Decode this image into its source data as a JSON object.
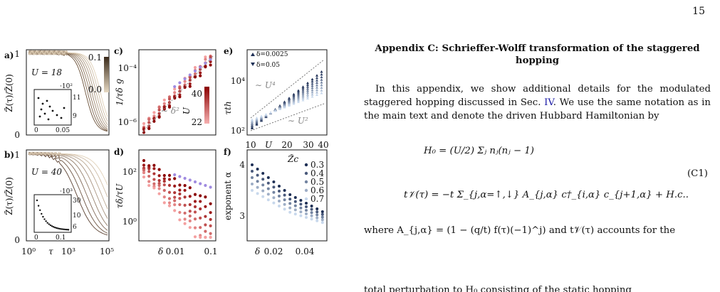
{
  "page_number": "15",
  "figure": {
    "panels": {
      "a": {
        "label": "a)",
        "param": "U = 18",
        "cbar_label": "δ",
        "cbar_ticks": [
          "0.1",
          "0.0"
        ],
        "ylabel": "Z̃(τ)/Z̃(0)",
        "yticks": [
          "1",
          "0"
        ],
        "inset_xticks": [
          "0",
          "0.05"
        ],
        "inset_yticks": [
          "·10²",
          "11",
          "9"
        ],
        "inset_ylabel": "τth"
      },
      "b": {
        "label": "b)",
        "param": "U = 40",
        "ylabel": "Z̃(τ)/Z̃(0)",
        "yticks": [
          "1",
          "0"
        ],
        "xticks": [
          "10⁰",
          "10³",
          "10⁵"
        ],
        "xlabel": "τ",
        "inset_xticks": [
          "0",
          "0.1"
        ],
        "inset_yticks": [
          "·10³",
          "30",
          "10",
          "6"
        ],
        "inset_ylabel": "τth"
      },
      "c": {
        "label": "c)",
        "ylabel": "1/τδ",
        "yticks": [
          "10⁻⁴",
          "10⁻⁶"
        ],
        "annotation": "∼ δ²",
        "cbar_label": "U",
        "cbar_ticks": [
          "40",
          "22"
        ]
      },
      "d": {
        "label": "d)",
        "ylabel": "τδ/τU",
        "yticks": [
          "10²",
          "10⁰"
        ],
        "xlabel": "δ",
        "xticks": [
          "0.01",
          "0.1"
        ]
      },
      "e": {
        "label": "e)",
        "ylabel": "τth",
        "yticks": [
          "10⁴",
          "10²"
        ],
        "xlabel": "U",
        "xticks": [
          "10",
          "20",
          "30",
          "40"
        ],
        "legend": [
          "δ=0.0025",
          "δ=0.05"
        ],
        "annotations": [
          "∼ U⁴",
          "∼ U²"
        ]
      },
      "f": {
        "label": "f)",
        "ylabel": "exponent α",
        "yticks": [
          "4",
          "3"
        ],
        "xlabel": "δ",
        "xticks": [
          "0.02",
          "0.04"
        ],
        "legend_title": "Z̃c",
        "legend": [
          "0.3",
          "0.4",
          "0.5",
          "0.6",
          "0.7"
        ]
      }
    }
  },
  "colors": {
    "text": "#111111",
    "link": "#1a1aa6",
    "brown_dark": "#3a2a1a",
    "brown_light": "#d8c8b0",
    "red_dark": "#8b0000",
    "red_light": "#f3a0a0",
    "purple": "#9a7ee0",
    "blue_dark": "#1e2f55",
    "blue_light": "#b8cce4"
  },
  "section": {
    "title": "Appendix C: Schrieffer-Wolff transformation of the staggered hopping",
    "para1_before": "In this appendix, we show additional details for the modulated staggered hopping discussed in Sec.",
    "para1_link": "IV",
    "para1_after": ". We use the same notation as in the main text and denote the driven Hubbard Hamiltonian by",
    "eq1": "H₀ = (U/2) Σⱼ nⱼ(nⱼ − 1)",
    "eq2": "t𝒱(τ) = −t Σ_{j,α=↑,↓} A_{j,α} c†_{i,α} c_{j+1,α} + H.c..",
    "eq_number": "(C1)",
    "para2": "where A_{j,α} = (1 − (q/t) f(τ)(−1)^j) and t𝒱(τ) accounts for the",
    "para2_cut": "total perturbation to H₀ consisting of the static hopping"
  }
}
